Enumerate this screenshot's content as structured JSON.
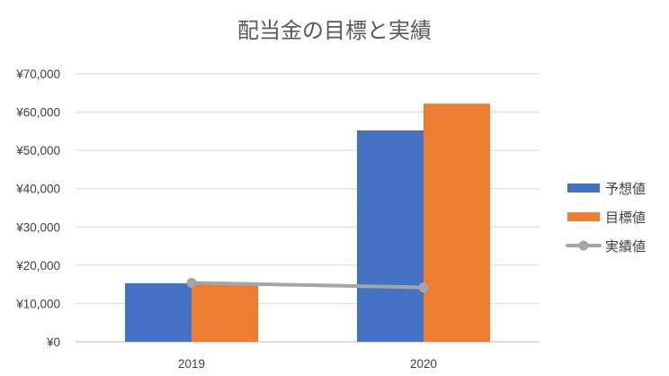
{
  "chart_data": {
    "type": "bar",
    "title": "配当金の目標と実績",
    "categories": [
      "2019",
      "2020"
    ],
    "series": [
      {
        "name": "予想値",
        "type": "bar",
        "color": "#4472C4",
        "values": [
          15300,
          55200
        ]
      },
      {
        "name": "目標値",
        "type": "bar",
        "color": "#ED7D31",
        "values": [
          15300,
          62200
        ]
      },
      {
        "name": "実績値",
        "type": "line",
        "color": "#A5A5A5",
        "values": [
          15400,
          14200
        ]
      }
    ],
    "yaxis": {
      "min": 0,
      "max": 70000,
      "step": 10000,
      "tick_labels": [
        "¥0",
        "¥10,000",
        "¥20,000",
        "¥30,000",
        "¥40,000",
        "¥50,000",
        "¥60,000",
        "¥70,000"
      ]
    },
    "xlabel": "",
    "ylabel": "",
    "grid": true,
    "legend_position": "right"
  }
}
